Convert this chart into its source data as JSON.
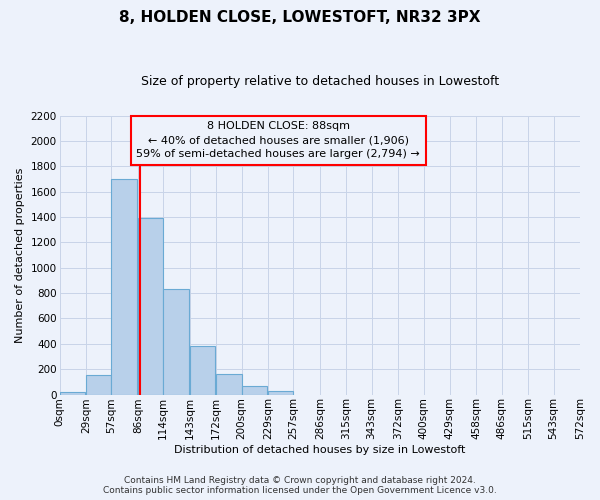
{
  "title": "8, HOLDEN CLOSE, LOWESTOFT, NR32 3PX",
  "subtitle": "Size of property relative to detached houses in Lowestoft",
  "xlabel": "Distribution of detached houses by size in Lowestoft",
  "ylabel": "Number of detached properties",
  "bar_left_edges": [
    0,
    29,
    57,
    86,
    114,
    143,
    172,
    200,
    229,
    257,
    286,
    315,
    343,
    372,
    400,
    429,
    458,
    486,
    515,
    543
  ],
  "bar_heights": [
    20,
    155,
    1700,
    1390,
    830,
    380,
    160,
    65,
    30,
    0,
    0,
    0,
    0,
    0,
    0,
    0,
    0,
    0,
    0,
    0
  ],
  "bin_width": 28,
  "bar_color": "#b8d0ea",
  "bar_edge_color": "#6aaad4",
  "grid_color": "#c8d4e8",
  "vline_x": 88,
  "vline_color": "red",
  "annotation_title": "8 HOLDEN CLOSE: 88sqm",
  "annotation_line1": "← 40% of detached houses are smaller (1,906)",
  "annotation_line2": "59% of semi-detached houses are larger (2,794) →",
  "annotation_box_color": "red",
  "ylim": [
    0,
    2200
  ],
  "xlim_min": 0,
  "xlim_max": 572,
  "x_tick_labels": [
    "0sqm",
    "29sqm",
    "57sqm",
    "86sqm",
    "114sqm",
    "143sqm",
    "172sqm",
    "200sqm",
    "229sqm",
    "257sqm",
    "286sqm",
    "315sqm",
    "343sqm",
    "372sqm",
    "400sqm",
    "429sqm",
    "458sqm",
    "486sqm",
    "515sqm",
    "543sqm",
    "572sqm"
  ],
  "x_tick_positions": [
    0,
    29,
    57,
    86,
    114,
    143,
    172,
    200,
    229,
    257,
    286,
    315,
    343,
    372,
    400,
    429,
    458,
    486,
    515,
    543,
    572
  ],
  "ytick_positions": [
    0,
    200,
    400,
    600,
    800,
    1000,
    1200,
    1400,
    1600,
    1800,
    2000,
    2200
  ],
  "footer_line1": "Contains HM Land Registry data © Crown copyright and database right 2024.",
  "footer_line2": "Contains public sector information licensed under the Open Government Licence v3.0.",
  "background_color": "#edf2fb",
  "title_fontsize": 11,
  "subtitle_fontsize": 9,
  "ylabel_fontsize": 8,
  "xlabel_fontsize": 8,
  "tick_fontsize": 7.5,
  "annotation_fontsize": 8,
  "footer_fontsize": 6.5
}
